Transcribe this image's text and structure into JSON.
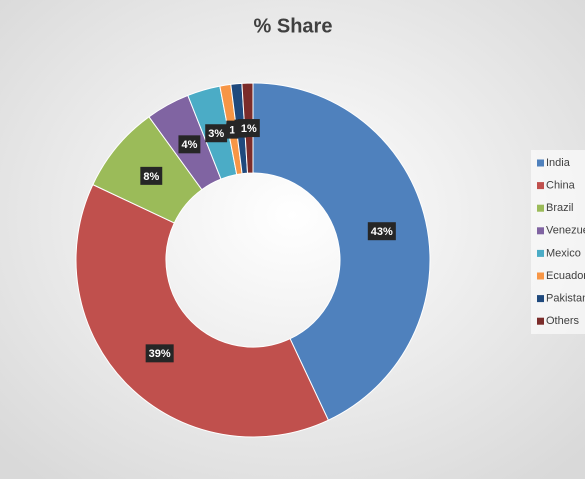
{
  "chart_data": {
    "type": "doughnut",
    "title": "% Share",
    "categories": [
      "India",
      "China",
      "Brazil",
      "Venezuela",
      "Mexico",
      "Ecuador",
      "Pakistan",
      "Others"
    ],
    "values": [
      43,
      39,
      8,
      4,
      3,
      1,
      1,
      1
    ],
    "value_labels": [
      "43%",
      "39%",
      "8%",
      "4%",
      "3%",
      "1",
      "1",
      "1%"
    ],
    "colors": [
      "#4f81bd",
      "#c0504d",
      "#9bbb59",
      "#8064a2",
      "#4bacc6",
      "#f79646",
      "#1f497d",
      "#7b2c2a"
    ],
    "legend": "right"
  }
}
